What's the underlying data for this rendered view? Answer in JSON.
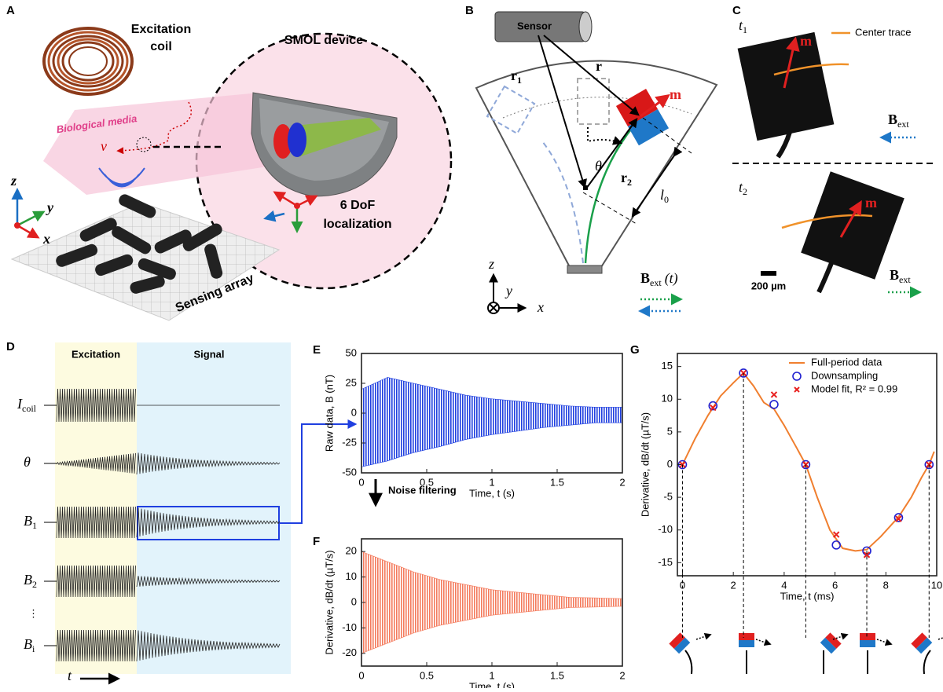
{
  "panel_labels": [
    "A",
    "B",
    "C",
    "D",
    "E",
    "F",
    "G"
  ],
  "panel_a": {
    "coil_label": [
      "Excitation",
      "coil"
    ],
    "device_title": "SMOL device",
    "media_label": "Biological media",
    "velocity": "v",
    "axes": [
      "z",
      "y",
      "x"
    ],
    "array_label": "Sensing array",
    "dof_label": [
      "6 DoF",
      "localization"
    ]
  },
  "panel_b": {
    "sensor": "Sensor",
    "r1": {
      "main": "r",
      "sub": "1"
    },
    "r": "r",
    "m": "m",
    "theta": "θ",
    "r2": {
      "main": "r",
      "sub": "2"
    },
    "l0": {
      "main": "l",
      "sub": "0"
    },
    "axes": [
      "z",
      "y",
      "x"
    ],
    "field": {
      "main": "B",
      "sub": "ext",
      "suffix": "(t)"
    }
  },
  "panel_c": {
    "t1": {
      "main": "t",
      "sub": "1"
    },
    "legend": "Center trace",
    "m_top": "m",
    "field_top": {
      "main": "B",
      "sub": "ext"
    },
    "t2": {
      "main": "t",
      "sub": "2"
    },
    "m_bottom": "m",
    "scale_bar": "200 µm",
    "field_bottom": {
      "main": "B",
      "sub": "ext"
    }
  },
  "panel_d": {
    "phase_excitation": "Excitation",
    "phase_signal": "Signal",
    "rows": [
      {
        "main": "I",
        "sub": "coil"
      },
      {
        "main": "θ"
      },
      {
        "main": "B",
        "sub": "1"
      },
      {
        "main": "B",
        "sub": "2"
      },
      {
        "main": "B",
        "sub": "i"
      }
    ],
    "ellipsis": "⋮",
    "time": "t"
  },
  "arrow_label": "Noise filtering",
  "chart_data": [
    {
      "type": "area",
      "ylabel": "Raw data, B (nT)",
      "xlabel": "Time, t (s)",
      "color": "#1f3fe0",
      "x": [
        0,
        0.2,
        0.4,
        0.6,
        0.8,
        1,
        1.2,
        1.4,
        1.6,
        1.8,
        2
      ],
      "upper": [
        20,
        30,
        25,
        20,
        15,
        12,
        10,
        8,
        6,
        5,
        5
      ],
      "lower": [
        -45,
        -40,
        -33,
        -28,
        -22,
        -18,
        -15,
        -12,
        -10,
        -8,
        -8
      ],
      "xlim": [
        0,
        2
      ],
      "xticks": [
        0,
        0.5,
        1,
        1.5,
        2
      ],
      "ylim": [
        -50,
        50
      ],
      "yticks": [
        -50,
        -25,
        0,
        25,
        50
      ]
    },
    {
      "type": "area",
      "ylabel": "Derivative, dB/dt (µT/s)",
      "xlabel": "Time, t (s)",
      "color": "#f47a5c",
      "x": [
        0,
        0.2,
        0.4,
        0.6,
        0.8,
        1,
        1.2,
        1.4,
        1.6,
        1.8,
        2
      ],
      "upper": [
        20,
        16,
        12,
        9,
        7,
        5,
        4,
        3,
        2,
        1.8,
        1.5
      ],
      "lower": [
        -20,
        -16,
        -12,
        -9,
        -7,
        -5,
        -4,
        -3,
        -2,
        -1.8,
        -1.5
      ],
      "xlim": [
        0,
        2
      ],
      "xticks": [
        0,
        0.5,
        1,
        1.5,
        2
      ],
      "ylim": [
        -25,
        25
      ],
      "yticks": [
        -20,
        -10,
        0,
        10,
        20
      ]
    },
    {
      "type": "line",
      "ylabel": "Derivative, dB/dt (µT/s)",
      "xlabel": "Time, t (ms)",
      "legend": "top right",
      "xlim": [
        -0.2,
        10
      ],
      "xticks": [
        0,
        2,
        4,
        6,
        8,
        10
      ],
      "ylim": [
        -17,
        17
      ],
      "yticks": [
        -15,
        -10,
        -5,
        0,
        5,
        10,
        15
      ],
      "series": [
        {
          "name": "Full-period data",
          "color": "#f07f2f",
          "marker": "line",
          "x": [
            0,
            0.5,
            1,
            1.5,
            2,
            2.4,
            2.8,
            3.2,
            3.6,
            4,
            4.5,
            4.85,
            5.3,
            5.8,
            6.3,
            6.8,
            7.25,
            7.8,
            8.5,
            9,
            9.4,
            9.7,
            9.9
          ],
          "values": [
            0,
            4,
            7.5,
            10.5,
            12.5,
            14,
            12,
            9.5,
            8.5,
            6,
            2.5,
            0,
            -5,
            -10,
            -12.8,
            -13.2,
            -13,
            -11,
            -8,
            -5,
            -2,
            0,
            2
          ]
        },
        {
          "name": "Downsampling",
          "color": "#1f1fd0",
          "marker": "circle",
          "x": [
            0,
            1.2,
            2.4,
            3.6,
            4.85,
            6.05,
            7.25,
            8.5,
            9.7
          ],
          "values": [
            0,
            9,
            14,
            9.2,
            0,
            -12.3,
            -13.2,
            -8.1,
            0
          ]
        },
        {
          "name": "Model fit, R² = 0.99",
          "color": "#e8201f",
          "marker": "x",
          "x": [
            0,
            1.2,
            2.4,
            3.6,
            4.85,
            6.05,
            7.25,
            8.5,
            9.7
          ],
          "values": [
            0,
            8.7,
            14,
            10.7,
            0,
            -10.7,
            -13.8,
            -8.3,
            0
          ]
        }
      ]
    }
  ]
}
